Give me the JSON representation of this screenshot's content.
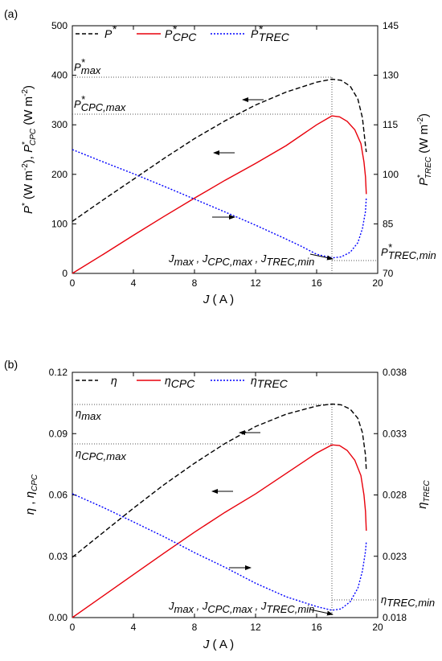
{
  "chart_data": [
    {
      "panel_label": "(a)",
      "type": "line",
      "xlabel": "J (A)",
      "xlim": [
        0,
        20
      ],
      "x_ticks": [
        "0",
        "4",
        "8",
        "12",
        "16",
        "20"
      ],
      "ylabel_left": "P* (W m-2), P*CPC (W m-2)",
      "ylim_left": [
        0,
        500
      ],
      "y_left_ticks": [
        "0",
        "100",
        "200",
        "300",
        "400",
        "500"
      ],
      "ylabel_right": "P*TREC (W m-2)",
      "ylim_right": [
        70,
        145
      ],
      "y_right_ticks": [
        "70",
        "85",
        "100",
        "115",
        "130",
        "145"
      ],
      "legend": [
        "P*",
        "P*CPC",
        "P*TREC"
      ],
      "annotations": [
        "P*max",
        "P*CPC,max",
        "P*TREC,min",
        "Jmax , JCPC,max , JTREC,min"
      ],
      "series": [
        {
          "name": "P*",
          "axis": "left",
          "color": "#000000",
          "dash": "dash",
          "points": [
            [
              0,
              105
            ],
            [
              2,
              148
            ],
            [
              4,
              190
            ],
            [
              6,
              232
            ],
            [
              8,
              272
            ],
            [
              10,
              308
            ],
            [
              12,
              340
            ],
            [
              14,
              366
            ],
            [
              16,
              386
            ],
            [
              17,
              392
            ],
            [
              17.6,
              390
            ],
            [
              18.2,
              378
            ],
            [
              18.7,
              352
            ],
            [
              19.0,
              314
            ],
            [
              19.2,
              258
            ],
            [
              19.25,
              245
            ]
          ]
        },
        {
          "name": "P*CPC",
          "axis": "left",
          "color": "#e8000b",
          "dash": "solid",
          "points": [
            [
              0,
              0
            ],
            [
              2,
              38
            ],
            [
              4,
              77
            ],
            [
              6,
              115
            ],
            [
              8,
              152
            ],
            [
              10,
              188
            ],
            [
              12,
              222
            ],
            [
              14,
              258
            ],
            [
              16,
              300
            ],
            [
              17,
              318
            ],
            [
              17.5,
              316
            ],
            [
              18,
              307
            ],
            [
              18.5,
              290
            ],
            [
              18.9,
              262
            ],
            [
              19.1,
              225
            ],
            [
              19.2,
              195
            ],
            [
              19.25,
              160
            ]
          ]
        },
        {
          "name": "P*TREC",
          "axis": "right",
          "color": "#0000ff",
          "dash": "dot",
          "points": [
            [
              0,
              107.5
            ],
            [
              2,
              103.8
            ],
            [
              4,
              100.2
            ],
            [
              6,
              96.4
            ],
            [
              8,
              92.5
            ],
            [
              10,
              88.6
            ],
            [
              12,
              84.6
            ],
            [
              14,
              80.4
            ],
            [
              15,
              78.2
            ],
            [
              16,
              75.8
            ],
            [
              17,
              74.7
            ],
            [
              17.6,
              75.0
            ],
            [
              18.2,
              76.4
            ],
            [
              18.7,
              79.3
            ],
            [
              19.0,
              83.6
            ],
            [
              19.2,
              88.8
            ],
            [
              19.25,
              93
            ]
          ]
        }
      ]
    },
    {
      "panel_label": "(b)",
      "type": "line",
      "xlabel": "J (A)",
      "xlim": [
        0,
        20
      ],
      "x_ticks": [
        "0",
        "4",
        "8",
        "12",
        "16",
        "20"
      ],
      "ylabel_left": "η , ηCPC",
      "ylim_left": [
        0,
        0.12
      ],
      "y_left_ticks": [
        "0.00",
        "0.03",
        "0.06",
        "0.09",
        "0.12"
      ],
      "ylabel_right": "ηTREC",
      "ylim_right": [
        0.018,
        0.038
      ],
      "y_right_ticks": [
        "0.018",
        "0.023",
        "0.028",
        "0.033",
        "0.038"
      ],
      "legend": [
        "η",
        "ηCPC",
        "ηTREC"
      ],
      "annotations": [
        "ηmax",
        "ηCPC,max",
        "ηTREC,min",
        "Jmax , JCPC,max , JTREC,min"
      ],
      "series": [
        {
          "name": "η",
          "axis": "left",
          "color": "#000000",
          "dash": "dash",
          "points": [
            [
              0,
              0.0295
            ],
            [
              2,
              0.0415
            ],
            [
              4,
              0.0535
            ],
            [
              6,
              0.065
            ],
            [
              8,
              0.0755
            ],
            [
              10,
              0.0852
            ],
            [
              12,
              0.0935
            ],
            [
              14,
              0.0995
            ],
            [
              16,
              0.1035
            ],
            [
              17,
              0.1045
            ],
            [
              17.6,
              0.1041
            ],
            [
              18.2,
              0.102
            ],
            [
              18.7,
              0.0975
            ],
            [
              19.0,
              0.0905
            ],
            [
              19.2,
              0.0795
            ],
            [
              19.25,
              0.072
            ]
          ]
        },
        {
          "name": "ηCPC",
          "axis": "left",
          "color": "#e8000b",
          "dash": "solid",
          "points": [
            [
              0,
              0
            ],
            [
              2,
              0.0105
            ],
            [
              4,
              0.021
            ],
            [
              6,
              0.0315
            ],
            [
              8,
              0.0418
            ],
            [
              10,
              0.0515
            ],
            [
              12,
              0.0605
            ],
            [
              14,
              0.0705
            ],
            [
              16,
              0.0805
            ],
            [
              17,
              0.0845
            ],
            [
              17.5,
              0.0842
            ],
            [
              18,
              0.0818
            ],
            [
              18.5,
              0.077
            ],
            [
              18.9,
              0.0695
            ],
            [
              19.1,
              0.06
            ],
            [
              19.2,
              0.052
            ],
            [
              19.25,
              0.0425
            ]
          ]
        },
        {
          "name": "ηTREC",
          "axis": "right",
          "color": "#0000ff",
          "dash": "dot",
          "points": [
            [
              0,
              0.0281
            ],
            [
              2,
              0.027
            ],
            [
              4,
              0.0258
            ],
            [
              6,
              0.0246
            ],
            [
              8,
              0.0233
            ],
            [
              10,
              0.0221
            ],
            [
              12,
              0.0208
            ],
            [
              14,
              0.0197
            ],
            [
              16,
              0.0189
            ],
            [
              17,
              0.0186
            ],
            [
              17.6,
              0.0187
            ],
            [
              18.2,
              0.0193
            ],
            [
              18.7,
              0.0204
            ],
            [
              19.0,
              0.0218
            ],
            [
              19.2,
              0.0234
            ],
            [
              19.25,
              0.0242
            ]
          ]
        }
      ]
    }
  ]
}
